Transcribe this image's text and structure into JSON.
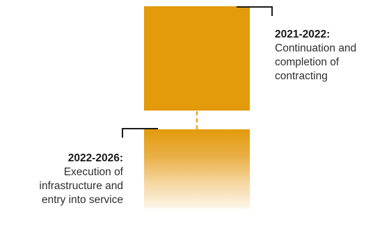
{
  "phases": [
    {
      "years": "2021-2022:",
      "description": "Continuation and\ncompletion of\ncontracting",
      "color": "#e39a0b"
    },
    {
      "years": "2022-2026:",
      "description": "Execution of\ninfrastructure and\nentry into service",
      "color": "#e39a0b"
    }
  ]
}
